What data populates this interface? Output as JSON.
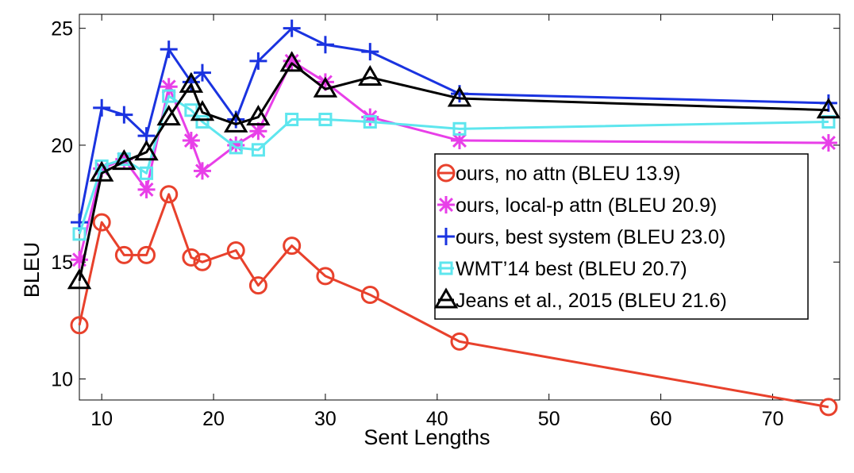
{
  "chart_data": {
    "type": "line",
    "xlabel": "Sent Lengths",
    "ylabel": "BLEU",
    "xlim": [
      8,
      76
    ],
    "ylim": [
      9.1,
      25.6
    ],
    "xticks": [
      10,
      20,
      30,
      40,
      50,
      60,
      70
    ],
    "yticks": [
      10,
      15,
      20,
      25
    ],
    "grid": false,
    "legend_position": "center-right",
    "series": [
      {
        "name": "ours, no attn (BLEU 13.9)",
        "color": "#e8412c",
        "marker": "circle",
        "x": [
          8,
          10,
          12,
          14,
          16,
          18,
          19,
          22,
          24,
          27,
          30,
          34,
          42,
          75
        ],
        "y": [
          12.3,
          16.7,
          15.3,
          15.3,
          17.9,
          15.2,
          15.0,
          15.5,
          14.0,
          15.7,
          14.4,
          13.6,
          11.6,
          8.8
        ]
      },
      {
        "name": "ours, local-p attn (BLEU 20.9)",
        "color": "#e83fe8",
        "marker": "asterisk",
        "x": [
          8,
          10,
          12,
          14,
          16,
          18,
          19,
          22,
          24,
          27,
          30,
          34,
          42,
          75
        ],
        "y": [
          15.1,
          19.0,
          19.4,
          18.1,
          22.5,
          20.2,
          18.9,
          20.0,
          20.6,
          23.6,
          22.7,
          21.2,
          20.2,
          20.1
        ]
      },
      {
        "name": "ours, best system (BLEU 23.0)",
        "color": "#1a33e0",
        "marker": "plus",
        "x": [
          8,
          10,
          12,
          14,
          16,
          18,
          19,
          22,
          24,
          27,
          30,
          34,
          42,
          75
        ],
        "y": [
          16.7,
          21.6,
          21.3,
          20.4,
          24.1,
          22.7,
          23.1,
          21.1,
          23.6,
          25.0,
          24.3,
          24.0,
          22.2,
          21.8
        ]
      },
      {
        "name": "WMT’14 best (BLEU 20.7)",
        "color": "#5ee6ee",
        "marker": "square",
        "x": [
          8,
          10,
          12,
          14,
          16,
          18,
          19,
          22,
          24,
          27,
          30,
          34,
          42,
          75
        ],
        "y": [
          16.2,
          19.1,
          19.4,
          18.8,
          22.1,
          21.5,
          21.0,
          19.9,
          19.8,
          21.1,
          21.1,
          21.0,
          20.7,
          21.0
        ]
      },
      {
        "name": "Jeans et al., 2015 (BLEU 21.6)",
        "color": "#000000",
        "marker": "triangle",
        "x": [
          8,
          10,
          12,
          14,
          16,
          18,
          19,
          22,
          24,
          27,
          30,
          34,
          42,
          75
        ],
        "y": [
          14.2,
          18.8,
          19.3,
          19.7,
          21.2,
          22.6,
          21.4,
          20.9,
          21.2,
          23.5,
          22.4,
          22.9,
          22.0,
          21.5
        ]
      }
    ]
  }
}
